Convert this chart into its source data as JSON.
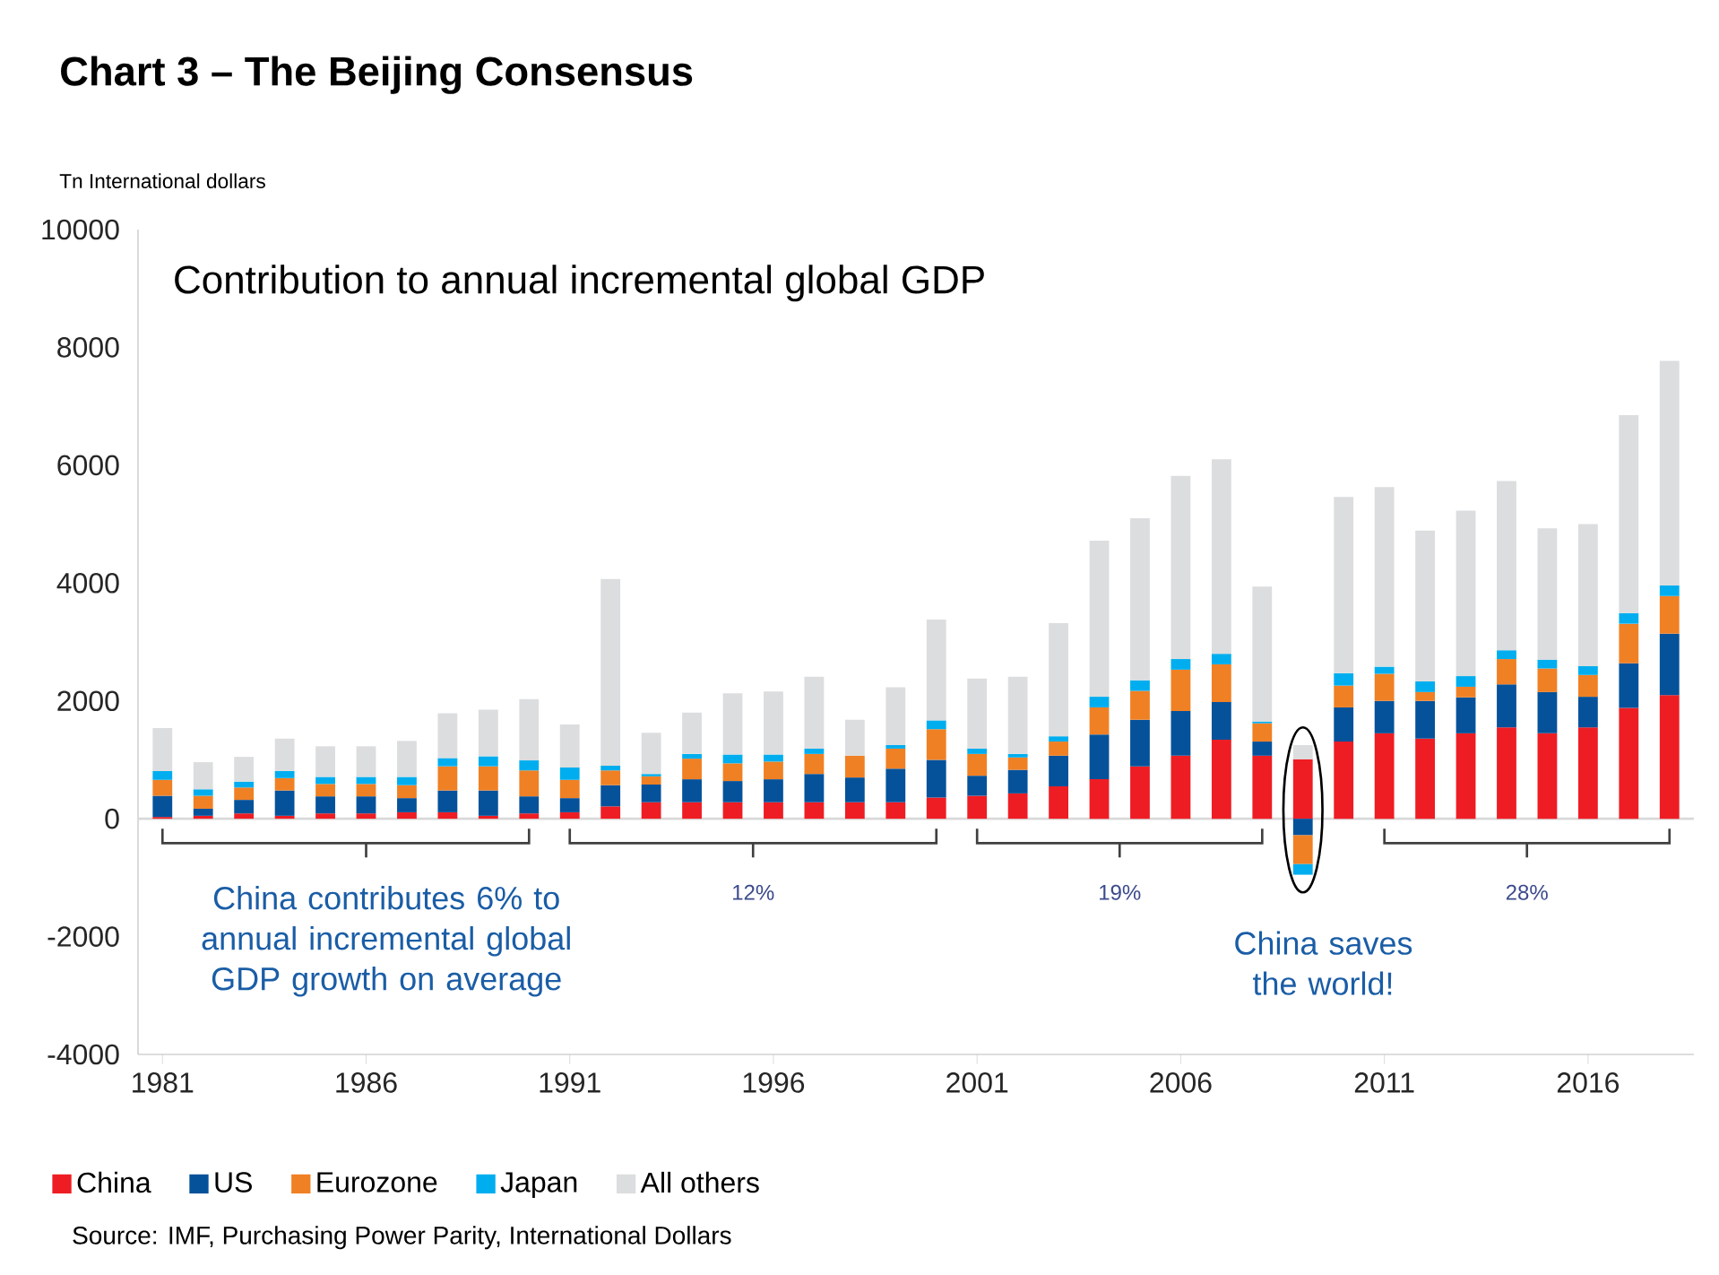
{
  "chart_data": {
    "type": "bar",
    "stacked": true,
    "title": "Chart 3 – The Beijing Consensus",
    "subtitle": "Contribution to annual incremental global GDP",
    "ylabel": "Tn International dollars",
    "x": [
      1981,
      1982,
      1983,
      1984,
      1985,
      1986,
      1987,
      1988,
      1989,
      1990,
      1991,
      1992,
      1993,
      1994,
      1995,
      1996,
      1997,
      1998,
      1999,
      2000,
      2001,
      2002,
      2003,
      2004,
      2005,
      2006,
      2007,
      2008,
      2009,
      2010,
      2011,
      2012,
      2013,
      2014,
      2015,
      2016,
      2017,
      2018
    ],
    "xlim": [
      1980.4,
      2018.6
    ],
    "xticks": [
      1981,
      1986,
      1991,
      1996,
      2001,
      2006,
      2011,
      2016
    ],
    "ylim": [
      -4000,
      10000
    ],
    "yticks": [
      -4000,
      -2000,
      0,
      2000,
      4000,
      6000,
      8000,
      10000
    ],
    "series": [
      {
        "name": "China",
        "color": "#ee1d23",
        "values": [
          30,
          50,
          90,
          50,
          90,
          90,
          110,
          110,
          50,
          90,
          110,
          210,
          280,
          280,
          280,
          280,
          280,
          280,
          280,
          360,
          390,
          430,
          550,
          670,
          890,
          1070,
          1340,
          1070,
          1010,
          1310,
          1450,
          1360,
          1450,
          1550,
          1450,
          1550,
          1880,
          2100
        ]
      },
      {
        "name": "US",
        "color": "#05529b",
        "values": [
          360,
          120,
          230,
          430,
          290,
          290,
          240,
          370,
          430,
          290,
          240,
          360,
          300,
          390,
          360,
          390,
          480,
          420,
          570,
          640,
          340,
          400,
          520,
          760,
          790,
          760,
          640,
          240,
          -280,
          580,
          550,
          640,
          610,
          730,
          700,
          520,
          760,
          1040
        ]
      },
      {
        "name": "Eurozone",
        "color": "#f08024",
        "values": [
          270,
          220,
          210,
          210,
          210,
          210,
          220,
          410,
          410,
          440,
          310,
          250,
          140,
          350,
          300,
          300,
          340,
          370,
          340,
          520,
          370,
          210,
          240,
          460,
          490,
          700,
          640,
          310,
          -490,
          370,
          460,
          150,
          180,
          430,
          400,
          370,
          670,
          640
        ]
      },
      {
        "name": "Japan",
        "color": "#00aeef",
        "values": [
          150,
          110,
          100,
          120,
          120,
          120,
          140,
          140,
          170,
          170,
          210,
          80,
          40,
          80,
          150,
          120,
          90,
          0,
          60,
          150,
          90,
          60,
          90,
          180,
          180,
          180,
          180,
          30,
          -180,
          210,
          120,
          180,
          180,
          150,
          150,
          150,
          180,
          180
        ]
      },
      {
        "name": "All others",
        "color": "#dcdddf",
        "values": [
          730,
          460,
          420,
          550,
          520,
          520,
          610,
          760,
          790,
          1040,
          730,
          3170,
          700,
          700,
          1040,
          1070,
          1220,
          610,
          980,
          1710,
          1190,
          1310,
          1920,
          2650,
          2750,
          3110,
          3300,
          2290,
          240,
          2990,
          3050,
          2560,
          2810,
          2870,
          2230,
          2410,
          3360,
          3810
        ]
      }
    ],
    "ref_lines": [
      {
        "axis": "y",
        "value": 0,
        "color": "#d9d9d9"
      }
    ],
    "legend": "bottom left",
    "annotations": [
      "China contributes 6% to annual incremental global GDP growth on average",
      "12%",
      "19%",
      "China saves the world!",
      "28%",
      "Source: IMF, Purchasing Power Parity, International Dollars"
    ]
  }
}
